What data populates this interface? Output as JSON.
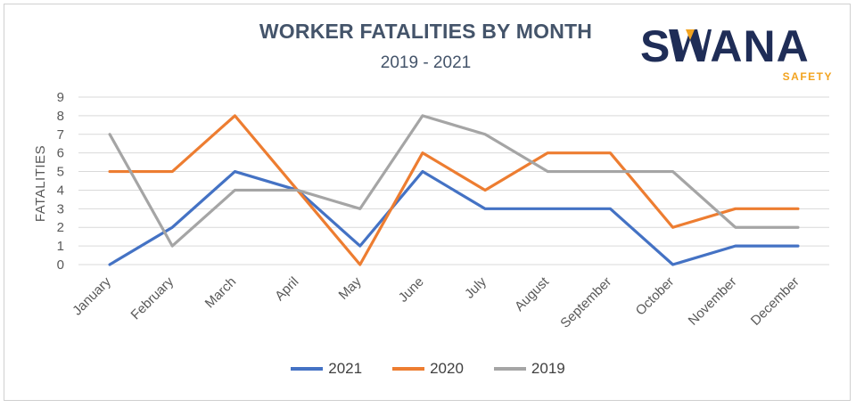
{
  "logo": {
    "word": "SWANA",
    "sub": "SAFETY"
  },
  "colors": {
    "s2021": "#4472c4",
    "s2020": "#ed7d31",
    "s2019": "#a5a5a5",
    "title": "#44546a",
    "grid": "#d9d9d9",
    "logo_navy": "#1f2d57",
    "logo_orange": "#f2a31f"
  },
  "chart_data": {
    "type": "line",
    "title": "WORKER FATALITIES BY MONTH",
    "subtitle": "2019 - 2021",
    "xlabel": "",
    "ylabel": "FATALITIES",
    "ylim": [
      0,
      9
    ],
    "yticks": [
      "0",
      "1",
      "2",
      "3",
      "4",
      "5",
      "6",
      "7",
      "8",
      "9"
    ],
    "grid": true,
    "legend_position": "bottom",
    "categories": [
      "January",
      "February",
      "March",
      "April",
      "May",
      "June",
      "July",
      "August",
      "September",
      "October",
      "November",
      "December"
    ],
    "series": [
      {
        "name": "2021",
        "color": "#4472c4",
        "values": [
          0,
          2,
          5,
          4,
          1,
          5,
          3,
          3,
          3,
          0,
          1,
          1
        ]
      },
      {
        "name": "2020",
        "color": "#ed7d31",
        "values": [
          5,
          5,
          8,
          4,
          0,
          6,
          4,
          6,
          6,
          2,
          3,
          3
        ]
      },
      {
        "name": "2019",
        "color": "#a5a5a5",
        "values": [
          7,
          1,
          4,
          4,
          3,
          8,
          7,
          5,
          5,
          5,
          2,
          2
        ]
      }
    ]
  }
}
